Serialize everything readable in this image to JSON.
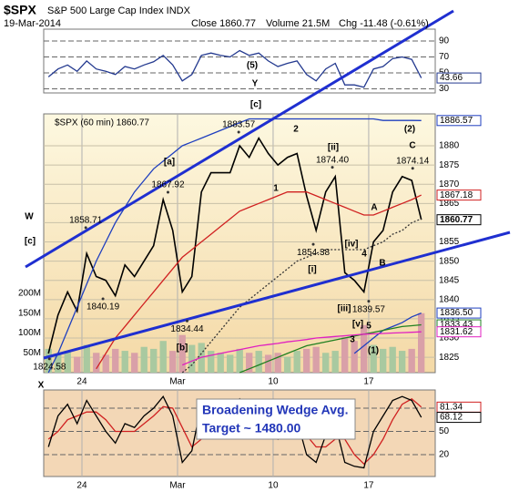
{
  "header": {
    "symbol": "$SPX",
    "name": "S&P 500 Large Cap Index INDX",
    "date": "19-Mar-2014",
    "close": "Close 1860.77",
    "volume": "Volume 21.5M",
    "change": "Chg -11.48 (-0.61%)"
  },
  "wave_labels": [
    "(5)",
    "Y",
    "[c]",
    "2",
    "[ii]",
    "1",
    "[a]",
    "W",
    "[c]",
    "[i]",
    "[iv]",
    "4",
    "A",
    "B",
    "[iii]",
    "[v]",
    "5",
    "3",
    "(1)",
    "(2)",
    "C",
    "[b]",
    "X"
  ],
  "annotation": [
    "Broadening Wedge Avg.",
    "Target ~ 1480.00"
  ],
  "chart_data": [
    {
      "type": "line",
      "xlim": [
        0,
        20.48
      ],
      "ylim": [
        24.9,
        104.9
      ],
      "yticks": [
        30,
        50,
        70,
        90
      ],
      "grid": true,
      "x": [
        0.25,
        0.75,
        1.25,
        1.75,
        2.25,
        2.75,
        3.25,
        3.75,
        4.25,
        4.75,
        5.25,
        5.75,
        6.25,
        6.75,
        7.25,
        7.75,
        8.25,
        8.75,
        9.25,
        9.75,
        10.25,
        10.75,
        11.25,
        11.75,
        12.25,
        12.75,
        13.25,
        13.75,
        14.25,
        14.75,
        15.25,
        15.75,
        16.25,
        16.75,
        17.25,
        17.75,
        18.25,
        18.75,
        19.25,
        19.75
      ],
      "series": [
        {
          "color": "#23398f",
          "end_label": "43.66",
          "values": [
            45,
            55,
            60,
            52,
            65,
            55,
            52,
            48,
            58,
            55,
            60,
            64,
            72,
            60,
            40,
            48,
            72,
            75,
            72,
            70,
            78,
            72,
            75,
            65,
            58,
            62,
            65,
            48,
            40,
            55,
            62,
            35,
            35,
            32,
            55,
            58,
            68,
            70,
            67,
            43.66
          ]
        }
      ]
    },
    {
      "type": "line",
      "xlim": [
        0,
        20.48
      ],
      "ylim": [
        1821,
        1888.3
      ],
      "yticks": [
        1825,
        1830,
        1835,
        1840,
        1845,
        1850,
        1855,
        1860,
        1865,
        1870,
        1875,
        1880
      ],
      "grid": true,
      "legend": "$SPX (60 min) 1860.77",
      "xticks": [
        {
          "value": 2,
          "label": "24"
        },
        {
          "value": 7,
          "label": "Mar"
        },
        {
          "value": 12,
          "label": "10"
        },
        {
          "value": 17,
          "label": "17"
        }
      ],
      "x": [
        0.25,
        0.75,
        1.25,
        1.75,
        2.25,
        2.75,
        3.25,
        3.75,
        4.25,
        4.75,
        5.25,
        5.75,
        6.25,
        6.75,
        7.25,
        7.75,
        8.25,
        8.75,
        9.25,
        9.75,
        10.25,
        10.75,
        11.25,
        11.75,
        12.25,
        12.75,
        13.25,
        13.75,
        14.25,
        14.75,
        15.25,
        15.75,
        16.25,
        16.75,
        17.25,
        17.75,
        18.25,
        18.75,
        19.25,
        19.75
      ],
      "series": [
        {
          "color": "#000000",
          "end_label": "1860.77",
          "values": [
            1826,
            1836,
            1842,
            1837,
            1852,
            1846,
            1845,
            1841,
            1849,
            1846,
            1850,
            1854,
            1866,
            1858,
            1842,
            1846,
            1868,
            1873,
            1873,
            1873,
            1880,
            1877,
            1882,
            1878,
            1875,
            1877,
            1878,
            1867,
            1858,
            1868,
            1872,
            1847,
            1845,
            1842,
            1855,
            1858,
            1868,
            1872,
            1871,
            1860.77
          ]
        },
        {
          "color": "#1f3fbf",
          "end_label": "1886.57",
          "values": [
            1821,
            1826,
            1832,
            1838,
            1844,
            1850,
            1855,
            1860,
            1864,
            1868,
            1871,
            1874,
            1876,
            1878,
            1880,
            1881,
            1882,
            1883,
            1884,
            1885,
            1886,
            1887,
            1887,
            1887,
            1887,
            1887,
            1887,
            1887,
            1887,
            1887,
            1887,
            1887,
            1887,
            1887,
            1887,
            1886.6,
            1886.6,
            1886.6,
            1886.6,
            1886.57
          ]
        },
        {
          "color": "#d02020",
          "end_label": "1867.18",
          "values": [
            null,
            null,
            null,
            null,
            null,
            1822,
            1826,
            1830,
            1833,
            1836,
            1839,
            1842,
            1845,
            1848,
            1851,
            1853,
            1855,
            1857,
            1859,
            1861,
            1863,
            1864,
            1865,
            1866,
            1867,
            1868,
            1868,
            1868,
            1867,
            1866,
            1865,
            1864,
            1863,
            1862,
            1862,
            1863,
            1864,
            1865,
            1866,
            1867.18
          ]
        },
        {
          "color": "#333333",
          "style": "dotted",
          "values": [
            null,
            null,
            null,
            null,
            null,
            null,
            null,
            null,
            null,
            null,
            null,
            null,
            null,
            null,
            1821,
            1823,
            1826,
            1829,
            1832,
            1835,
            1838,
            1840,
            1842,
            1844,
            1846,
            1848,
            1850,
            1851,
            1852,
            1853,
            1853,
            1853,
            1853,
            1853,
            1854,
            1855,
            1857,
            1858,
            1860,
            1861
          ]
        },
        {
          "color": "#1f3fbf",
          "end_label": "1836.50",
          "values": [
            null,
            null,
            null,
            null,
            null,
            null,
            null,
            null,
            null,
            null,
            null,
            null,
            null,
            null,
            null,
            null,
            null,
            null,
            null,
            null,
            null,
            null,
            null,
            null,
            null,
            null,
            null,
            null,
            null,
            null,
            null,
            null,
            1826,
            1828,
            1830,
            1832,
            1833,
            1834,
            1835.5,
            1836.5
          ]
        },
        {
          "color": "#208020",
          "end_label": "1833.43",
          "values": [
            null,
            null,
            null,
            null,
            null,
            null,
            null,
            null,
            null,
            null,
            null,
            null,
            null,
            null,
            null,
            null,
            null,
            null,
            null,
            null,
            1821,
            1822,
            1823,
            1824,
            1825,
            1826,
            1827,
            1828,
            1828.5,
            1829,
            1829.5,
            1830,
            1830.5,
            1831,
            1831.5,
            1832,
            1832.5,
            1833,
            1833.2,
            1833.43
          ]
        },
        {
          "color": "#e020c0",
          "end_label": "1831.62",
          "values": [
            null,
            null,
            null,
            null,
            null,
            null,
            null,
            null,
            null,
            null,
            null,
            null,
            null,
            null,
            1823,
            1824,
            1825,
            1825.5,
            1826,
            1826.5,
            1827,
            1827.5,
            1828,
            1828.3,
            1828.6,
            1829,
            1829.3,
            1829.6,
            1830,
            1830.2,
            1830.4,
            1830.6,
            1830.8,
            1831,
            1831.1,
            1831.2,
            1831.3,
            1831.4,
            1831.5,
            1831.62
          ]
        }
      ],
      "price_labels": [
        {
          "x": 10.2,
          "value": 1883.57,
          "label": "1883.57"
        },
        {
          "x": 15.1,
          "value": 1874.4,
          "label": "1874.40"
        },
        {
          "x": 19.3,
          "value": 1874.14,
          "label": "1874.14"
        },
        {
          "x": 6.5,
          "value": 1867.92,
          "label": "1867.92"
        },
        {
          "x": 2.2,
          "value": 1858.71,
          "label": "1858.71"
        },
        {
          "x": 14.1,
          "value": 1854.38,
          "label": "1854.38"
        },
        {
          "x": 3.1,
          "value": 1840.19,
          "label": "1840.19"
        },
        {
          "x": 17.0,
          "value": 1839.57,
          "label": "1839.57"
        },
        {
          "x": 7.5,
          "value": 1834.44,
          "label": "1834.44"
        },
        {
          "x": 0.3,
          "value": 1824.58,
          "label": "1824.58"
        }
      ],
      "y2lim": [
        0,
        653000000
      ],
      "y2ticks": [
        {
          "value": 50000000,
          "label": "50M"
        },
        {
          "value": 100000000,
          "label": "100M"
        },
        {
          "value": 150000000,
          "label": "150M"
        },
        {
          "value": 200000000,
          "label": "200M"
        }
      ],
      "volume": {
        "axis": "y2",
        "values": [
          60000000,
          45000000,
          55000000,
          40000000,
          70000000,
          50000000,
          45000000,
          60000000,
          55000000,
          50000000,
          65000000,
          60000000,
          80000000,
          55000000,
          95000000,
          70000000,
          75000000,
          55000000,
          50000000,
          45000000,
          60000000,
          50000000,
          55000000,
          45000000,
          50000000,
          40000000,
          55000000,
          60000000,
          65000000,
          50000000,
          55000000,
          90000000,
          80000000,
          120000000,
          70000000,
          60000000,
          65000000,
          55000000,
          60000000,
          150000000
        ]
      }
    },
    {
      "type": "line",
      "xlim": [
        0,
        20.48
      ],
      "ylim": [
        -8.2,
        103.5
      ],
      "yticks": [
        20,
        50,
        80
      ],
      "grid": true,
      "xticks": [
        {
          "value": 2,
          "label": "24"
        },
        {
          "value": 7,
          "label": "Mar"
        },
        {
          "value": 12,
          "label": "10"
        },
        {
          "value": 17,
          "label": "17"
        }
      ],
      "x": [
        0.25,
        0.75,
        1.25,
        1.75,
        2.25,
        2.75,
        3.25,
        3.75,
        4.25,
        4.75,
        5.25,
        5.75,
        6.25,
        6.75,
        7.25,
        7.75,
        8.25,
        8.75,
        9.25,
        9.75,
        10.25,
        10.75,
        11.25,
        11.75,
        12.25,
        12.75,
        13.25,
        13.75,
        14.25,
        14.75,
        15.25,
        15.75,
        16.25,
        16.75,
        17.25,
        17.75,
        18.25,
        18.75,
        19.25,
        19.75
      ],
      "series": [
        {
          "color": "#d02020",
          "end_label": "81.34",
          "values": [
            40,
            50,
            65,
            70,
            75,
            75,
            65,
            50,
            50,
            50,
            60,
            70,
            82,
            80,
            55,
            30,
            40,
            65,
            85,
            85,
            88,
            85,
            82,
            75,
            60,
            52,
            55,
            45,
            30,
            30,
            40,
            40,
            20,
            8,
            20,
            40,
            65,
            85,
            92,
            81.34
          ]
        },
        {
          "color": "#000000",
          "end_label": "68.12",
          "values": [
            30,
            70,
            85,
            60,
            90,
            70,
            50,
            35,
            60,
            55,
            70,
            80,
            95,
            70,
            10,
            25,
            85,
            90,
            85,
            80,
            92,
            75,
            88,
            60,
            40,
            55,
            65,
            20,
            10,
            45,
            60,
            10,
            5,
            3,
            50,
            70,
            90,
            95,
            90,
            68.12
          ]
        }
      ]
    }
  ]
}
